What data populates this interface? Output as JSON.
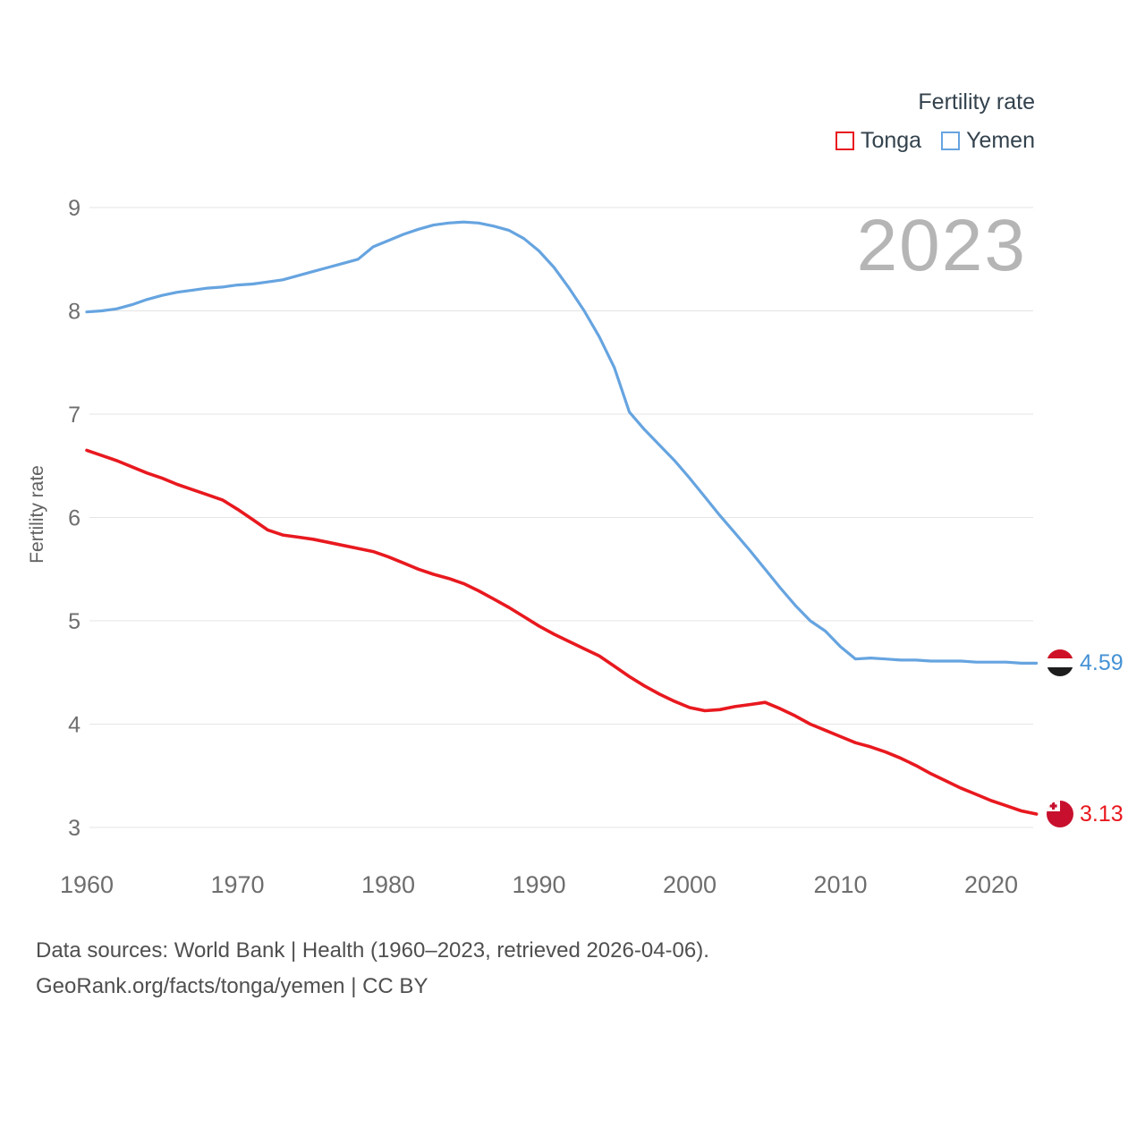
{
  "page": {
    "watermark_year": "2023",
    "legend": {
      "title": "Fertility rate",
      "items": [
        {
          "label": "Tonga",
          "color": "#e8191f"
        },
        {
          "label": "Yemen",
          "color": "#66a4e0"
        }
      ]
    },
    "y_axis_title": "Fertility rate",
    "footer": {
      "line1": "Data sources: World Bank | Health (1960–2023, retrieved 2026-04-06).",
      "line2": "GeoRank.org/facts/tonga/yemen | CC BY"
    }
  },
  "chart_data": {
    "type": "line",
    "title": "Fertility rate",
    "xlabel": "",
    "ylabel": "Fertility rate",
    "ylim": [
      3,
      9
    ],
    "yticks": [
      3,
      4,
      5,
      6,
      7,
      8,
      9
    ],
    "xticks": [
      1960,
      1970,
      1980,
      1990,
      2000,
      2010,
      2020
    ],
    "grid": "horizontal",
    "legend_position": "top-right",
    "x": [
      1960,
      1961,
      1962,
      1963,
      1964,
      1965,
      1966,
      1967,
      1968,
      1969,
      1970,
      1971,
      1972,
      1973,
      1974,
      1975,
      1976,
      1977,
      1978,
      1979,
      1980,
      1981,
      1982,
      1983,
      1984,
      1985,
      1986,
      1987,
      1988,
      1989,
      1990,
      1991,
      1992,
      1993,
      1994,
      1995,
      1996,
      1997,
      1998,
      1999,
      2000,
      2001,
      2002,
      2003,
      2004,
      2005,
      2006,
      2007,
      2008,
      2009,
      2010,
      2011,
      2012,
      2013,
      2014,
      2015,
      2016,
      2017,
      2018,
      2019,
      2020,
      2021,
      2022,
      2023
    ],
    "series": [
      {
        "name": "Tonga",
        "color": "#e8191f",
        "values": [
          6.65,
          6.6,
          6.55,
          6.49,
          6.43,
          6.38,
          6.32,
          6.27,
          6.22,
          6.17,
          6.08,
          5.98,
          5.88,
          5.83,
          5.81,
          5.79,
          5.76,
          5.73,
          5.7,
          5.67,
          5.62,
          5.56,
          5.5,
          5.45,
          5.41,
          5.36,
          5.29,
          5.21,
          5.13,
          5.04,
          4.95,
          4.87,
          4.8,
          4.73,
          4.66,
          4.56,
          4.46,
          4.37,
          4.29,
          4.22,
          4.16,
          4.13,
          4.14,
          4.17,
          4.19,
          4.21,
          4.15,
          4.08,
          4.0,
          3.94,
          3.88,
          3.82,
          3.78,
          3.73,
          3.67,
          3.6,
          3.52,
          3.45,
          3.38,
          3.32,
          3.26,
          3.21,
          3.16,
          3.13
        ]
      },
      {
        "name": "Yemen",
        "color": "#66a4e0",
        "values": [
          7.99,
          8.0,
          8.02,
          8.06,
          8.11,
          8.15,
          8.18,
          8.2,
          8.22,
          8.23,
          8.25,
          8.26,
          8.28,
          8.3,
          8.34,
          8.38,
          8.42,
          8.46,
          8.5,
          8.62,
          8.68,
          8.74,
          8.79,
          8.83,
          8.85,
          8.86,
          8.85,
          8.82,
          8.78,
          8.7,
          8.58,
          8.42,
          8.22,
          8.0,
          7.75,
          7.45,
          7.02,
          6.85,
          6.7,
          6.55,
          6.38,
          6.2,
          6.02,
          5.85,
          5.68,
          5.5,
          5.32,
          5.15,
          5.0,
          4.9,
          4.75,
          4.63,
          4.64,
          4.63,
          4.62,
          4.62,
          4.61,
          4.61,
          4.61,
          4.6,
          4.6,
          4.6,
          4.59,
          4.59
        ]
      }
    ],
    "end_labels": [
      {
        "series": "Yemen",
        "value": "4.59",
        "color": "#4592d5"
      },
      {
        "series": "Tonga",
        "value": "3.13",
        "color": "#e8191f"
      }
    ]
  }
}
